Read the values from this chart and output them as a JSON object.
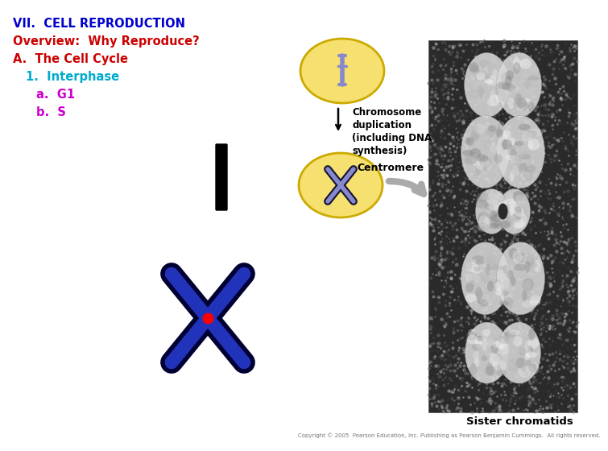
{
  "title_line1": "VII.  CELL REPRODUCTION",
  "title_line2": "Overview:  Why Reproduce?",
  "title_line3": "A.  The Cell Cycle",
  "title_line4": "1.  Interphase",
  "title_line5": "a.  G1",
  "title_line6": "b.  S",
  "title_color": "#0000cc",
  "overview_color": "#cc0000",
  "A_color": "#cc0000",
  "num_color": "#00aacc",
  "ab_color": "#cc00cc",
  "text_arrow": "Chromosome\nduplication\n(including DNA\nsynthesis)",
  "centromere_label": "Centromere",
  "sister_chromatids": "Sister chromatids",
  "bg_color": "#ffffff",
  "copyright_text": "Copyright © 2005  Pearson Education, Inc. Publishing as Pearson Benjamin Cummings.  All rights reserved.",
  "cell_ellipse_color": "#f5e070",
  "cell_ellipse_edge": "#ccaa00",
  "chromo_color": "#8888cc",
  "arrow_gray": "#aaaaaa",
  "photo_bg": "#2a2a2a"
}
